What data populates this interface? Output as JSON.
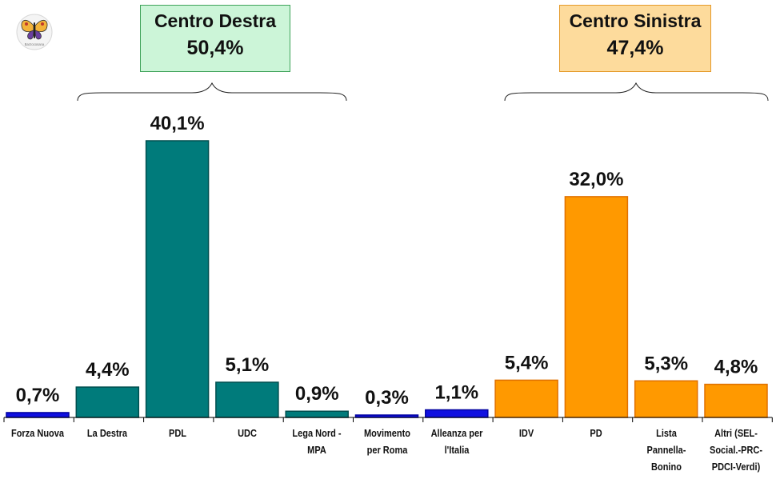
{
  "groups": {
    "centro_destra": {
      "name": "Centro Destra",
      "value": "50,4%",
      "color": "#ccf5d8",
      "border": "#3fa35a"
    },
    "centro_sinistra": {
      "name": "Centro Sinistra",
      "value": "47,4%",
      "color": "#fddb9c",
      "border": "#e59a2a"
    }
  },
  "logo": {
    "text": "Barzocosana"
  },
  "chart_data": {
    "type": "bar",
    "title": "",
    "xlabel": "",
    "ylabel": "",
    "grid": false,
    "legend": "none",
    "categories": [
      "Forza Nuova",
      "La Destra",
      "PDL",
      "UDC",
      "Lega Nord - MPA",
      "Movimento per Roma",
      "Alleanza per l'Italia",
      "IDV",
      "PD",
      "Lista Pannella-Bonino",
      "Altri (SEL-Social.-PRC-PDCI-Verdi)"
    ],
    "category_lines": [
      [
        "Forza Nuova"
      ],
      [
        "La Destra"
      ],
      [
        "PDL"
      ],
      [
        "UDC"
      ],
      [
        "Lega Nord -",
        "MPA"
      ],
      [
        "Movimento",
        "per Roma"
      ],
      [
        "Alleanza per",
        "l'Italia"
      ],
      [
        "IDV"
      ],
      [
        "PD"
      ],
      [
        "Lista",
        "Pannella-",
        "Bonino"
      ],
      [
        "Altri (SEL-",
        "Social.-PRC-",
        "PDCI-Verdi)"
      ]
    ],
    "values": [
      0.7,
      4.4,
      40.1,
      5.1,
      0.9,
      0.3,
      1.1,
      5.4,
      32.0,
      5.3,
      4.8
    ],
    "data_labels": [
      "0,7%",
      "4,4%",
      "40,1%",
      "5,1%",
      "0,9%",
      "0,3%",
      "1,1%",
      "5,4%",
      "32,0%",
      "5,3%",
      "4,8%"
    ],
    "bar_colors": [
      "#1010e0",
      "#007b7b",
      "#007b7b",
      "#007b7b",
      "#007b7b",
      "#1010e0",
      "#1010e0",
      "#ff9900",
      "#ff9900",
      "#ff9900",
      "#ff9900"
    ],
    "bar_borders": [
      "#0000a0",
      "#004f4f",
      "#004f4f",
      "#004f4f",
      "#004f4f",
      "#0000a0",
      "#0000a0",
      "#e07000",
      "#e07000",
      "#e07000",
      "#e07000"
    ],
    "unit": "%"
  }
}
